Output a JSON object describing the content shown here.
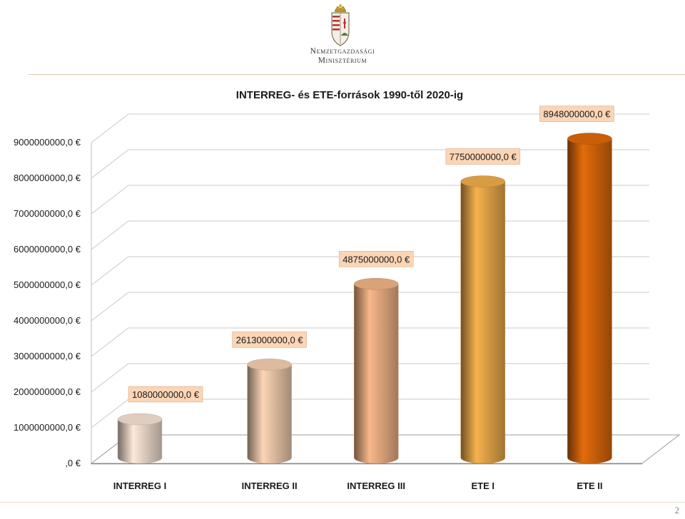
{
  "header": {
    "logo_line1": "Nemzetgazdasági",
    "logo_line2": "Minisztérium"
  },
  "page_number": "2",
  "colors": {
    "bar_fills": [
      "#fde9d9",
      "#fbd5b5",
      "#f8b88a",
      "#f6b14e",
      "#e46c0a"
    ],
    "data_label_bg": "#fbd5b5",
    "grid": "#c8c8c8"
  },
  "chart_data": {
    "type": "bar",
    "style": "3d-cylinder",
    "title": "INTERREG- és ETE-források 1990-től 2020-ig",
    "categories": [
      "INTERREG I",
      "INTERREG II",
      "INTERREG III",
      "ETE I",
      "ETE II"
    ],
    "values": [
      1080000000,
      2613000000,
      4875000000,
      7750000000,
      8948000000
    ],
    "data_labels": [
      "1080000000,0 €",
      "2613000000,0 €",
      "4875000000,0 €",
      "7750000000,0 €",
      "8948000000,0 €"
    ],
    "y_ticks": [
      0,
      1000000000,
      2000000000,
      3000000000,
      4000000000,
      5000000000,
      6000000000,
      7000000000,
      8000000000,
      9000000000
    ],
    "y_tick_labels": [
      ",0 €",
      "1000000000,0 €",
      "2000000000,0 €",
      "3000000000,0 €",
      "4000000000,0 €",
      "5000000000,0 €",
      "6000000000,0 €",
      "7000000000,0 €",
      "8000000000,0 €",
      "9000000000,0 €"
    ],
    "ylim": [
      0,
      9000000000
    ],
    "grid": true,
    "legend": false
  }
}
